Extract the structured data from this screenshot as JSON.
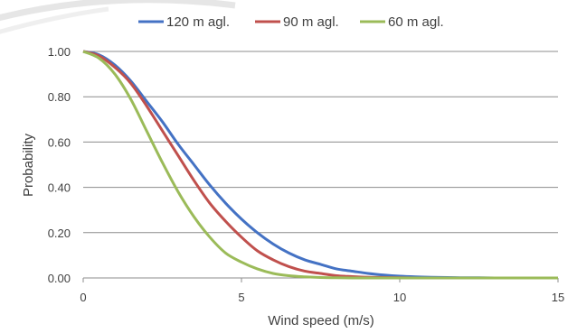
{
  "chart_data": {
    "type": "line",
    "title": "",
    "xlabel": "Wind speed (m/s)",
    "ylabel": "Probability",
    "xlim": [
      0,
      15
    ],
    "ylim": [
      0,
      1
    ],
    "x_ticks": [
      "0",
      "5",
      "10",
      "15"
    ],
    "y_ticks": [
      "0.00",
      "0.20",
      "0.40",
      "0.60",
      "0.80",
      "1.00"
    ],
    "grid": "horizontal",
    "legend_position": "top",
    "x": [
      0,
      0.5,
      1,
      1.5,
      2,
      2.5,
      3,
      3.5,
      4,
      4.5,
      5,
      5.5,
      6,
      6.5,
      7,
      7.5,
      8,
      8.5,
      9,
      9.5,
      10,
      10.5,
      11,
      11.5,
      12,
      12.5,
      13,
      13.5,
      14,
      14.5,
      15
    ],
    "series": [
      {
        "name": "120 m agl.",
        "color": "#4472C4",
        "values": [
          1.0,
          0.985,
          0.94,
          0.87,
          0.78,
          0.69,
          0.59,
          0.5,
          0.41,
          0.33,
          0.26,
          0.2,
          0.15,
          0.11,
          0.08,
          0.06,
          0.04,
          0.03,
          0.02,
          0.013,
          0.008,
          0.005,
          0.003,
          0.002,
          0.001,
          0.001,
          0.0,
          0.0,
          0.0,
          0.0,
          0.0
        ]
      },
      {
        "name": "90 m agl.",
        "color": "#C0504D",
        "values": [
          1.0,
          0.98,
          0.93,
          0.86,
          0.76,
          0.65,
          0.54,
          0.43,
          0.33,
          0.25,
          0.18,
          0.12,
          0.08,
          0.05,
          0.03,
          0.02,
          0.01,
          0.006,
          0.003,
          0.002,
          0.001,
          0.0,
          0.0,
          0.0,
          0.0,
          0.0,
          0.0,
          0.0,
          0.0,
          0.0,
          0.0
        ]
      },
      {
        "name": "60 m agl.",
        "color": "#9BBB59",
        "values": [
          1.0,
          0.97,
          0.9,
          0.79,
          0.65,
          0.51,
          0.38,
          0.27,
          0.18,
          0.11,
          0.07,
          0.04,
          0.02,
          0.01,
          0.005,
          0.002,
          0.001,
          0.0,
          0.0,
          0.0,
          0.0,
          0.0,
          0.0,
          0.0,
          0.0,
          0.0,
          0.0,
          0.0,
          0.0,
          0.0,
          0.0
        ]
      }
    ]
  }
}
